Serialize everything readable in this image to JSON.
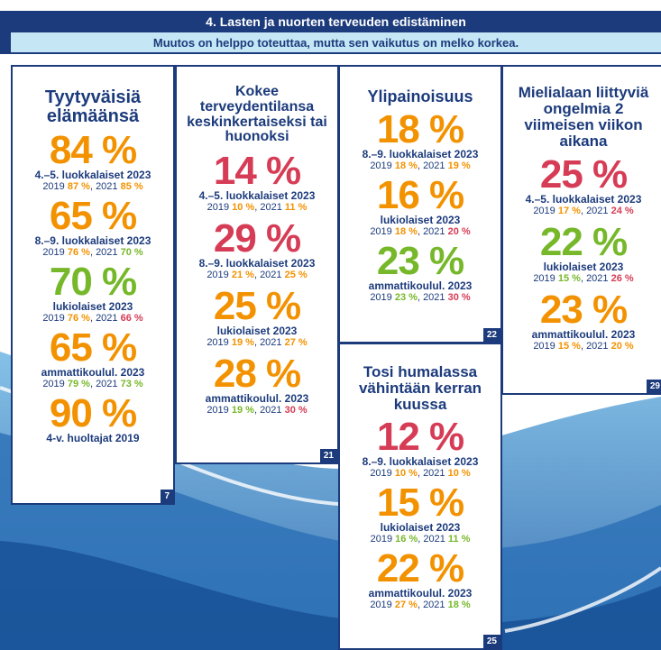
{
  "header": {
    "title": "4. Lasten ja nuorten terveuden edistäminen",
    "subtitle": "Muutos on helppo toteuttaa, mutta sen vaikutus on melko korkea."
  },
  "cards": [
    {
      "title": "Tyytyväisiä elämäänsä",
      "badge": "7",
      "items": [
        {
          "value": "84 %",
          "color": "#f39200",
          "group": "4.–5. luokkalaiset 2023",
          "history": [
            {
              "year": "2019",
              "value": "87 %",
              "color": "#f39200"
            },
            {
              "year": "2021",
              "value": "85 %",
              "color": "#f39200"
            }
          ]
        },
        {
          "value": "65 %",
          "color": "#f39200",
          "group": "8.–9. luokkalaiset 2023",
          "history": [
            {
              "year": "2019",
              "value": "76 %",
              "color": "#f39200"
            },
            {
              "year": "2021",
              "value": "70 %",
              "color": "#76b82a"
            }
          ]
        },
        {
          "value": "70 %",
          "color": "#76b82a",
          "group": "lukiolaiset 2023",
          "history": [
            {
              "year": "2019",
              "value": "76 %",
              "color": "#f39200"
            },
            {
              "year": "2021",
              "value": "66 %",
              "color": "#d63c55"
            }
          ]
        },
        {
          "value": "65 %",
          "color": "#f39200",
          "group": "ammattikoulul. 2023",
          "history": [
            {
              "year": "2019",
              "value": "79 %",
              "color": "#76b82a"
            },
            {
              "year": "2021",
              "value": "73 %",
              "color": "#76b82a"
            }
          ]
        },
        {
          "value": "90 %",
          "color": "#f39200",
          "group": "4-v. huoltajat 2019",
          "history": []
        }
      ]
    },
    {
      "title": "Kokee terveydentilansa keskinkertaiseksi tai huonoksi",
      "badge": "21",
      "items": [
        {
          "value": "14 %",
          "color": "#d63c55",
          "group": "4.–5. luokkalaiset 2023",
          "history": [
            {
              "year": "2019",
              "value": "10 %",
              "color": "#f39200"
            },
            {
              "year": "2021",
              "value": "11 %",
              "color": "#f39200"
            }
          ]
        },
        {
          "value": "29 %",
          "color": "#d63c55",
          "group": "8.–9. luokkalaiset 2023",
          "history": [
            {
              "year": "2019",
              "value": "21 %",
              "color": "#f39200"
            },
            {
              "year": "2021",
              "value": "25 %",
              "color": "#f39200"
            }
          ]
        },
        {
          "value": "25 %",
          "color": "#f39200",
          "group": "lukiolaiset 2023",
          "history": [
            {
              "year": "2019",
              "value": "19 %",
              "color": "#f39200"
            },
            {
              "year": "2021",
              "value": "27 %",
              "color": "#f39200"
            }
          ]
        },
        {
          "value": "28 %",
          "color": "#f39200",
          "group": "ammattikoulul. 2023",
          "history": [
            {
              "year": "2019",
              "value": "19 %",
              "color": "#76b82a"
            },
            {
              "year": "2021",
              "value": "30 %",
              "color": "#d63c55"
            }
          ]
        }
      ]
    },
    {
      "title": "Ylipainoisuus",
      "badge": "22",
      "items": [
        {
          "value": "18 %",
          "color": "#f39200",
          "group": "8.–9. luokkalaiset 2023",
          "history": [
            {
              "year": "2019",
              "value": "18 %",
              "color": "#f39200"
            },
            {
              "year": "2021",
              "value": "19 %",
              "color": "#f39200"
            }
          ]
        },
        {
          "value": "16 %",
          "color": "#f39200",
          "group": "lukiolaiset 2023",
          "history": [
            {
              "year": "2019",
              "value": "18 %",
              "color": "#f39200"
            },
            {
              "year": "2021",
              "value": "20 %",
              "color": "#d63c55"
            }
          ]
        },
        {
          "value": "23 %",
          "color": "#76b82a",
          "group": "ammattikoulul. 2023",
          "history": [
            {
              "year": "2019",
              "value": "23 %",
              "color": "#76b82a"
            },
            {
              "year": "2021",
              "value": "30 %",
              "color": "#d63c55"
            }
          ]
        }
      ]
    },
    {
      "title": "Tosi humalassa vähintään kerran kuussa",
      "badge": "25",
      "items": [
        {
          "value": "12 %",
          "color": "#d63c55",
          "group": "8.–9. luokkalaiset 2023",
          "history": [
            {
              "year": "2019",
              "value": "10 %",
              "color": "#f39200"
            },
            {
              "year": "2021",
              "value": "10 %",
              "color": "#f39200"
            }
          ]
        },
        {
          "value": "15 %",
          "color": "#f39200",
          "group": "lukiolaiset 2023",
          "history": [
            {
              "year": "2019",
              "value": "16 %",
              "color": "#76b82a"
            },
            {
              "year": "2021",
              "value": "11 %",
              "color": "#76b82a"
            }
          ]
        },
        {
          "value": "22 %",
          "color": "#f39200",
          "group": "ammattikoulul. 2023",
          "history": [
            {
              "year": "2019",
              "value": "27 %",
              "color": "#f39200"
            },
            {
              "year": "2021",
              "value": "18 %",
              "color": "#76b82a"
            }
          ]
        }
      ]
    },
    {
      "title": "Mielialaan liittyviä ongelmia 2 viimeisen viikon aikana",
      "badge": "29",
      "items": [
        {
          "value": "25 %",
          "color": "#d63c55",
          "group": "4.–5. luokkalaiset 2023",
          "history": [
            {
              "year": "2019",
              "value": "17 %",
              "color": "#f39200"
            },
            {
              "year": "2021",
              "value": "24 %",
              "color": "#d63c55"
            }
          ]
        },
        {
          "value": "22 %",
          "color": "#76b82a",
          "group": "lukiolaiset 2023",
          "history": [
            {
              "year": "2019",
              "value": "15 %",
              "color": "#76b82a"
            },
            {
              "year": "2021",
              "value": "26 %",
              "color": "#d63c55"
            }
          ]
        },
        {
          "value": "23 %",
          "color": "#f39200",
          "group": "ammattikoulul. 2023",
          "history": [
            {
              "year": "2019",
              "value": "15 %",
              "color": "#f39200"
            },
            {
              "year": "2021",
              "value": "20 %",
              "color": "#f39200"
            }
          ]
        }
      ]
    }
  ]
}
